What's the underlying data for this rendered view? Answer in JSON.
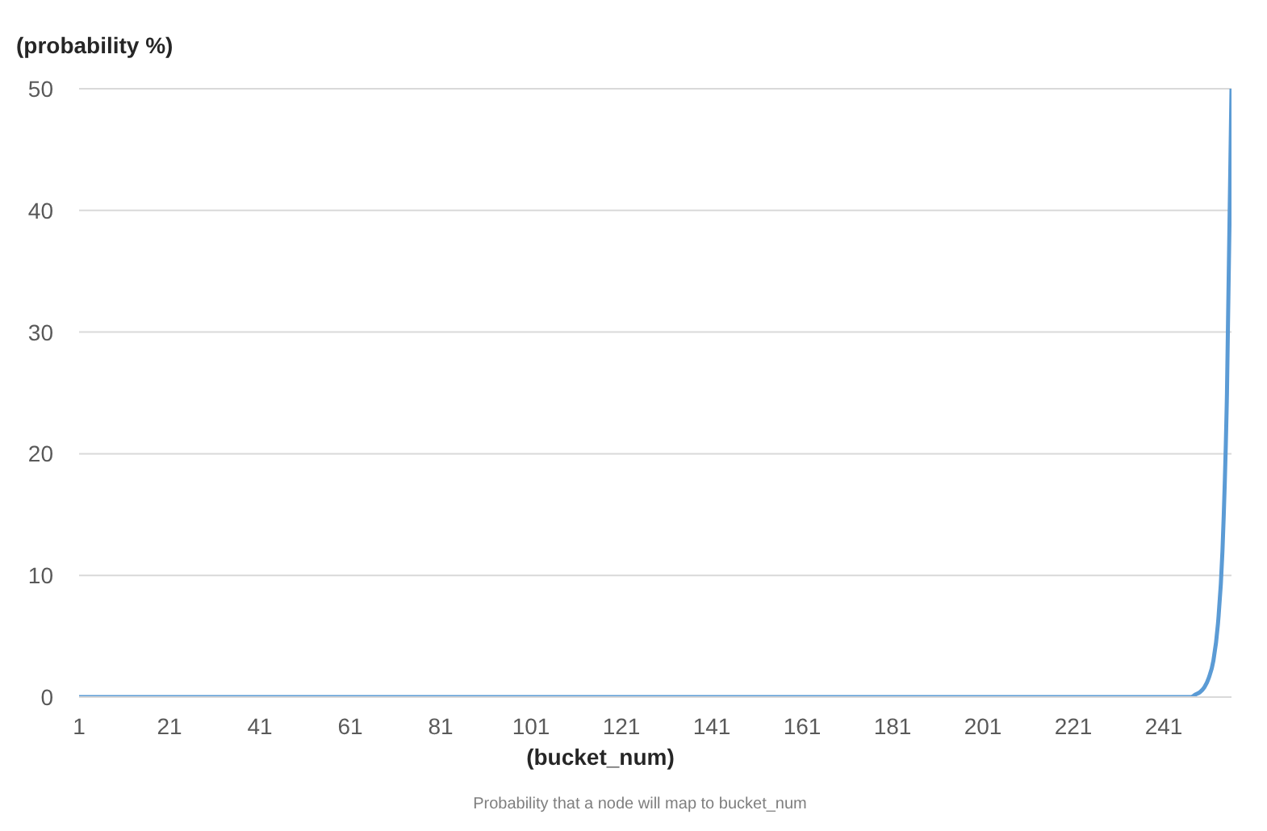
{
  "chart_data": {
    "type": "line",
    "xlabel": "(bucket_num)",
    "ylabel": "(probability %)",
    "annotations": [
      "Probability that a node will map to bucket_num"
    ],
    "x": [
      1,
      11,
      21,
      31,
      41,
      51,
      61,
      71,
      81,
      91,
      101,
      111,
      121,
      131,
      141,
      151,
      161,
      171,
      181,
      191,
      201,
      211,
      221,
      231,
      241,
      243,
      245,
      246,
      247,
      248,
      249,
      250,
      251,
      252,
      253,
      254,
      255,
      256
    ],
    "series": [
      {
        "color": "#5b9bd5",
        "values": [
          0,
          0,
          0,
          0,
          0,
          0,
          0,
          0,
          0,
          0,
          0,
          0,
          0,
          0,
          0,
          0,
          0,
          0,
          0,
          0,
          0,
          0,
          0,
          0,
          0,
          0,
          0,
          0,
          0,
          0.2,
          0.4,
          0.8,
          1.6,
          3,
          6,
          12,
          25,
          50
        ]
      }
    ],
    "xlim": [
      1,
      256
    ],
    "xticks": [
      1,
      21,
      41,
      61,
      81,
      101,
      121,
      141,
      161,
      181,
      201,
      221,
      241
    ],
    "ylim": [
      0,
      50
    ],
    "yticks": [
      0,
      10,
      20,
      30,
      40,
      50
    ],
    "grid": "y",
    "marker": "none",
    "line_style": "solid"
  }
}
